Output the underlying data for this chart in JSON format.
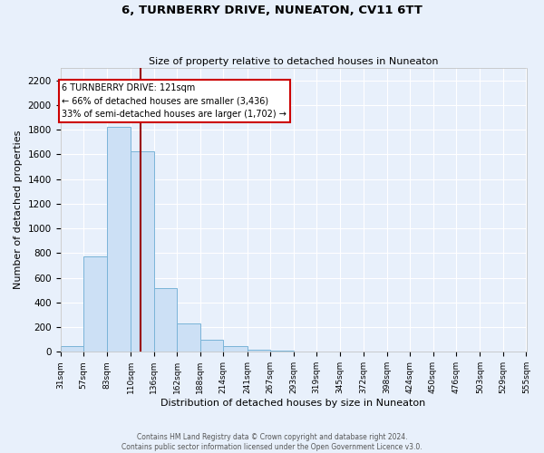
{
  "title": "6, TURNBERRY DRIVE, NUNEATON, CV11 6TT",
  "subtitle": "Size of property relative to detached houses in Nuneaton",
  "xlabel": "Distribution of detached houses by size in Nuneaton",
  "ylabel": "Number of detached properties",
  "bin_edges": [
    31,
    57,
    83,
    110,
    136,
    162,
    188,
    214,
    241,
    267,
    293,
    319,
    345,
    372,
    398,
    424,
    450,
    476,
    503,
    529,
    555
  ],
  "bar_heights": [
    50,
    775,
    1825,
    1625,
    520,
    230,
    100,
    50,
    20,
    10,
    0,
    0,
    0,
    0,
    0,
    0,
    0,
    0,
    0,
    0
  ],
  "bar_color": "#cce0f5",
  "bar_edgecolor": "#7ab4d8",
  "vline_x": 121,
  "vline_color": "#990000",
  "annotation_title": "6 TURNBERRY DRIVE: 121sqm",
  "annotation_line1": "← 66% of detached houses are smaller (3,436)",
  "annotation_line2": "33% of semi-detached houses are larger (1,702) →",
  "annotation_box_edgecolor": "#cc0000",
  "annotation_box_facecolor": "#ffffff",
  "ylim": [
    0,
    2300
  ],
  "background_color": "#e8f0fb",
  "plot_bg_color": "#e8f0fb",
  "grid_color": "#ffffff",
  "footer_line1": "Contains HM Land Registry data © Crown copyright and database right 2024.",
  "footer_line2": "Contains public sector information licensed under the Open Government Licence v3.0.",
  "tick_labels": [
    "31sqm",
    "57sqm",
    "83sqm",
    "110sqm",
    "136sqm",
    "162sqm",
    "188sqm",
    "214sqm",
    "241sqm",
    "267sqm",
    "293sqm",
    "319sqm",
    "345sqm",
    "372sqm",
    "398sqm",
    "424sqm",
    "450sqm",
    "476sqm",
    "503sqm",
    "529sqm",
    "555sqm"
  ],
  "yticks": [
    0,
    200,
    400,
    600,
    800,
    1000,
    1200,
    1400,
    1600,
    1800,
    2000,
    2200
  ]
}
